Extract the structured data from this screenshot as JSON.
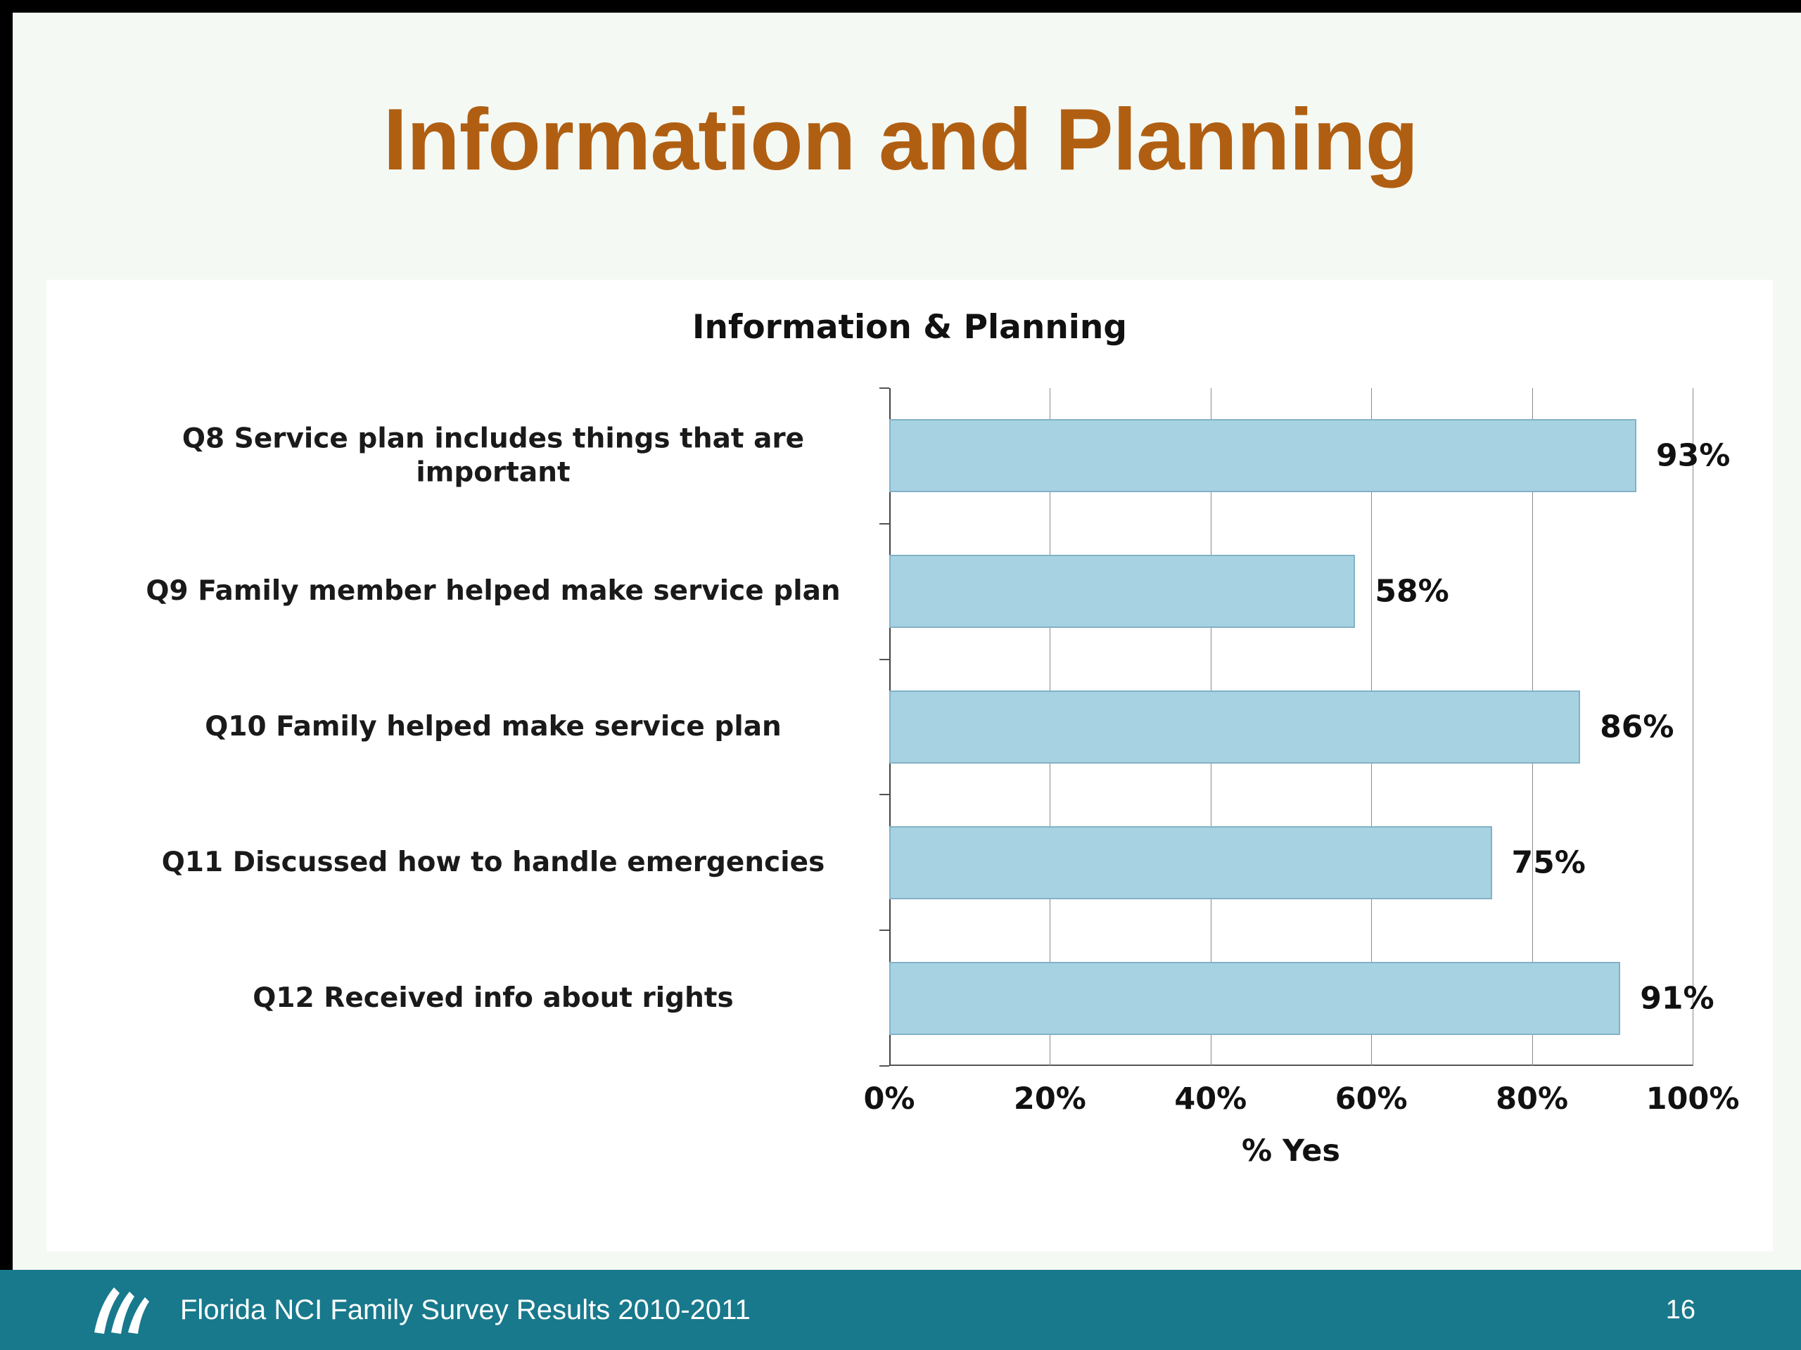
{
  "slide": {
    "title": "Information and Planning",
    "footer": {
      "text": "Florida NCI Family Survey Results 2010-2011",
      "page_number": "16",
      "logo_icon": "swoosh-logo-icon"
    },
    "colors": {
      "title_text": "#b05f12",
      "footer_bg": "#18798c",
      "bar_fill": "#a7d2e2",
      "bar_border": "#82b2c6",
      "slide_bg": "#f5f9f4"
    }
  },
  "chart_data": {
    "type": "bar",
    "orientation": "horizontal",
    "title": "Information & Planning",
    "categories": [
      "Q8 Service plan includes things that are important",
      "Q9 Family member helped make service plan",
      "Q10 Family helped make service plan",
      "Q11 Discussed how to handle emergencies",
      "Q12 Received info about rights"
    ],
    "values": [
      93,
      58,
      86,
      75,
      91
    ],
    "value_labels": [
      "93%",
      "58%",
      "86%",
      "75%",
      "91%"
    ],
    "xlabel": "% Yes",
    "x_ticks": [
      "0%",
      "20%",
      "40%",
      "60%",
      "80%",
      "100%"
    ],
    "xlim": [
      0,
      100
    ],
    "grid": true,
    "legend": "none"
  }
}
